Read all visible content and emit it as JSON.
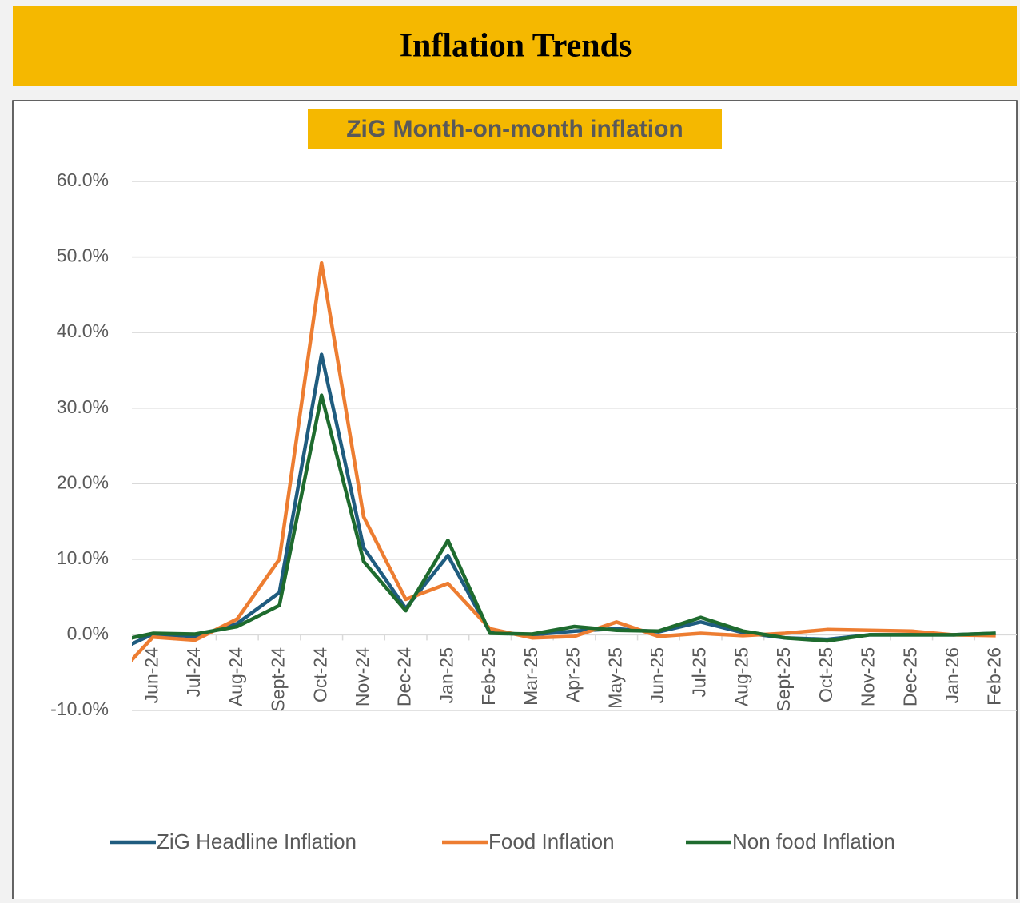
{
  "header": {
    "title": "Inflation Trends"
  },
  "chart_data": {
    "type": "line",
    "title": "ZiG Month-on-month inflation",
    "categories": [
      null,
      "Jun-24",
      "Jul-24",
      "Aug-24",
      "Sept-24",
      "Oct-24",
      "Nov-24",
      "Dec-24",
      "Jan-25",
      "Feb-25",
      "Mar-25",
      "Apr-25",
      "May-25",
      "Jun-25",
      "Jul-25",
      "Aug-25",
      "Sept-25",
      "Oct-25",
      "Nov-25",
      "Dec-25",
      "Jan-26",
      "Feb-26"
    ],
    "series": [
      {
        "name": "ZiG Headline Inflation",
        "color": "#1f5c7f",
        "values": [
          -2.5,
          0.1,
          -0.2,
          1.5,
          5.6,
          37.1,
          11.5,
          3.5,
          10.5,
          0.3,
          0.0,
          0.5,
          0.8,
          0.4,
          1.7,
          0.3,
          -0.4,
          -0.6,
          0.0,
          0.0,
          0.0,
          0.2
        ]
      },
      {
        "name": "Food Inflation",
        "color": "#ed7d31",
        "values": [
          -6.3,
          -0.3,
          -0.7,
          2.1,
          10.0,
          49.2,
          15.6,
          4.7,
          6.8,
          0.8,
          -0.4,
          -0.2,
          1.7,
          -0.2,
          0.2,
          -0.1,
          0.2,
          0.7,
          0.6,
          0.5,
          0.0,
          -0.1
        ]
      },
      {
        "name": "Non food Inflation",
        "color": "#1e6b2e",
        "values": [
          -1.0,
          0.2,
          0.1,
          1.1,
          3.9,
          31.7,
          9.7,
          3.2,
          12.5,
          0.2,
          0.1,
          1.1,
          0.6,
          0.5,
          2.3,
          0.5,
          -0.4,
          -0.8,
          0.0,
          0.0,
          0.0,
          0.2
        ]
      }
    ],
    "ylim": [
      -10,
      60
    ],
    "yticks": [
      {
        "value": -10,
        "label": "-10.0%"
      },
      {
        "value": 0,
        "label": "0.0%"
      },
      {
        "value": 10,
        "label": "10.0%"
      },
      {
        "value": 20,
        "label": "20.0%"
      },
      {
        "value": 30,
        "label": "30.0%"
      },
      {
        "value": 40,
        "label": "40.0%"
      },
      {
        "value": 50,
        "label": "50.0%"
      },
      {
        "value": 60,
        "label": "60.0%"
      }
    ],
    "grid": true,
    "legend": "bottom"
  }
}
